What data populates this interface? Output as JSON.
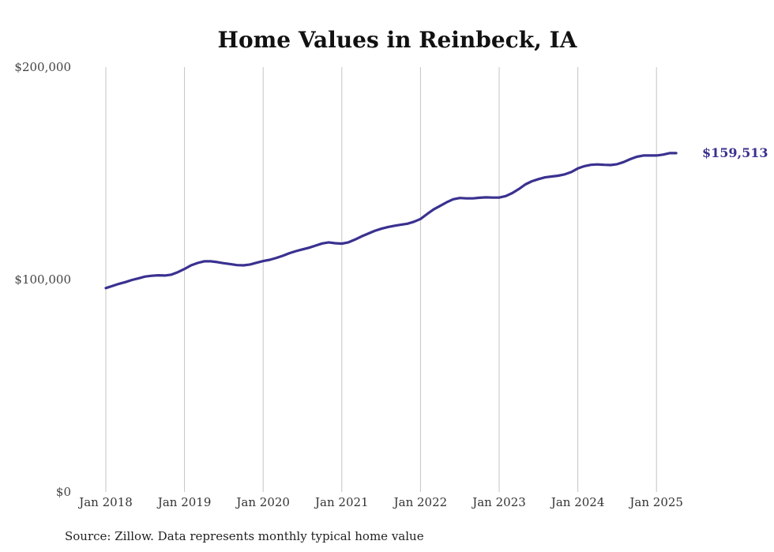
{
  "chart_data": {
    "type": "line",
    "title": "Home Values in Reinbeck, IA",
    "source_note": "Source: Zillow. Data represents monthly typical home value",
    "ylim": [
      0,
      200000
    ],
    "y_ticks": [
      {
        "value": 0,
        "label": "$0"
      },
      {
        "value": 100000,
        "label": "$100,000"
      },
      {
        "value": 200000,
        "label": "$200,000"
      }
    ],
    "x_ticks": [
      {
        "date": "2018-01",
        "label": "Jan 2018"
      },
      {
        "date": "2019-01",
        "label": "Jan 2019"
      },
      {
        "date": "2020-01",
        "label": "Jan 2020"
      },
      {
        "date": "2021-01",
        "label": "Jan 2021"
      },
      {
        "date": "2022-01",
        "label": "Jan 2022"
      },
      {
        "date": "2023-01",
        "label": "Jan 2023"
      },
      {
        "date": "2024-01",
        "label": "Jan 2024"
      },
      {
        "date": "2025-01",
        "label": "Jan 2025"
      }
    ],
    "grid": {
      "vertical": true,
      "horizontal": false
    },
    "line_color": "#3a3190",
    "end_label": {
      "text": "$159,513",
      "value": 159513
    },
    "series": [
      {
        "points": [
          [
            "2018-01",
            96000
          ],
          [
            "2018-02",
            97000
          ],
          [
            "2018-03",
            98000
          ],
          [
            "2018-04",
            98800
          ],
          [
            "2018-05",
            99800
          ],
          [
            "2018-06",
            100600
          ],
          [
            "2018-07",
            101400
          ],
          [
            "2018-08",
            101800
          ],
          [
            "2018-09",
            102000
          ],
          [
            "2018-10",
            101900
          ],
          [
            "2018-11",
            102300
          ],
          [
            "2018-12",
            103500
          ],
          [
            "2019-01",
            105000
          ],
          [
            "2019-02",
            106700
          ],
          [
            "2019-03",
            107800
          ],
          [
            "2019-04",
            108600
          ],
          [
            "2019-05",
            108600
          ],
          [
            "2019-06",
            108200
          ],
          [
            "2019-07",
            107700
          ],
          [
            "2019-08",
            107300
          ],
          [
            "2019-09",
            106800
          ],
          [
            "2019-10",
            106700
          ],
          [
            "2019-11",
            107100
          ],
          [
            "2019-12",
            107900
          ],
          [
            "2020-01",
            108700
          ],
          [
            "2020-02",
            109300
          ],
          [
            "2020-03",
            110200
          ],
          [
            "2020-04",
            111200
          ],
          [
            "2020-05",
            112400
          ],
          [
            "2020-06",
            113400
          ],
          [
            "2020-07",
            114200
          ],
          [
            "2020-08",
            115000
          ],
          [
            "2020-09",
            116000
          ],
          [
            "2020-10",
            117000
          ],
          [
            "2020-11",
            117500
          ],
          [
            "2020-12",
            117100
          ],
          [
            "2021-01",
            116900
          ],
          [
            "2021-02",
            117500
          ],
          [
            "2021-03",
            118800
          ],
          [
            "2021-04",
            120300
          ],
          [
            "2021-05",
            121600
          ],
          [
            "2021-06",
            122900
          ],
          [
            "2021-07",
            123900
          ],
          [
            "2021-08",
            124700
          ],
          [
            "2021-09",
            125300
          ],
          [
            "2021-10",
            125800
          ],
          [
            "2021-11",
            126300
          ],
          [
            "2021-12",
            127200
          ],
          [
            "2022-01",
            128500
          ],
          [
            "2022-02",
            130800
          ],
          [
            "2022-03",
            133000
          ],
          [
            "2022-04",
            134700
          ],
          [
            "2022-05",
            136400
          ],
          [
            "2022-06",
            137800
          ],
          [
            "2022-07",
            138400
          ],
          [
            "2022-08",
            138200
          ],
          [
            "2022-09",
            138200
          ],
          [
            "2022-10",
            138500
          ],
          [
            "2022-11",
            138700
          ],
          [
            "2022-12",
            138600
          ],
          [
            "2023-01",
            138600
          ],
          [
            "2023-02",
            139300
          ],
          [
            "2023-03",
            140700
          ],
          [
            "2023-04",
            142600
          ],
          [
            "2023-05",
            144800
          ],
          [
            "2023-06",
            146300
          ],
          [
            "2023-07",
            147300
          ],
          [
            "2023-08",
            148100
          ],
          [
            "2023-09",
            148500
          ],
          [
            "2023-10",
            148900
          ],
          [
            "2023-11",
            149500
          ],
          [
            "2023-12",
            150600
          ],
          [
            "2024-01",
            152300
          ],
          [
            "2024-02",
            153400
          ],
          [
            "2024-03",
            154000
          ],
          [
            "2024-04",
            154200
          ],
          [
            "2024-05",
            154000
          ],
          [
            "2024-06",
            153900
          ],
          [
            "2024-07",
            154300
          ],
          [
            "2024-08",
            155300
          ],
          [
            "2024-09",
            156700
          ],
          [
            "2024-10",
            157800
          ],
          [
            "2024-11",
            158400
          ],
          [
            "2024-12",
            158400
          ],
          [
            "2025-01",
            158400
          ],
          [
            "2025-02",
            158800
          ],
          [
            "2025-03",
            159500
          ],
          [
            "2025-04",
            159513
          ]
        ]
      }
    ]
  }
}
